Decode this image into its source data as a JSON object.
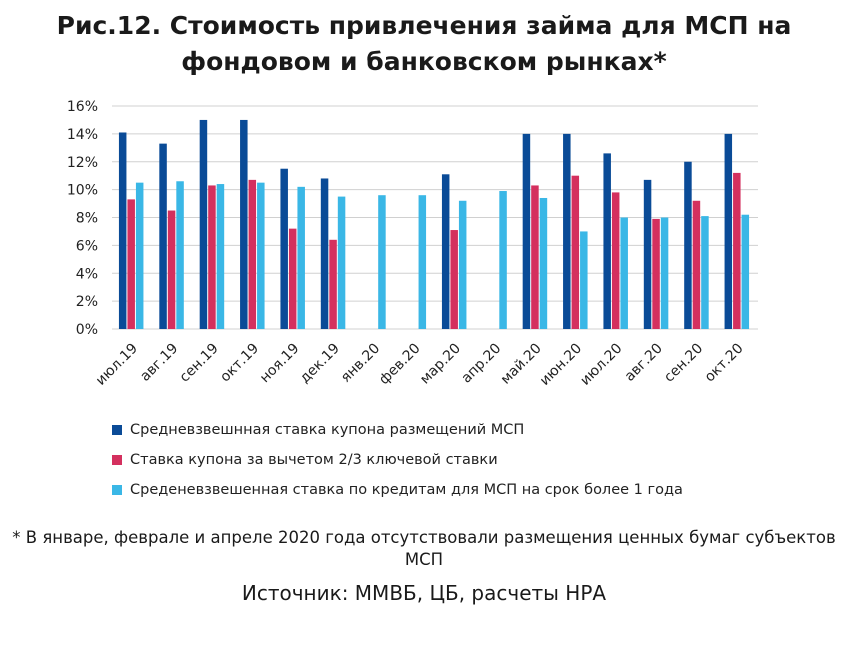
{
  "title": "Рис.12. Стоимость привлечения займа для МСП на фондовом и банковском рынках*",
  "footnote": "* В январе, феврале и апреле 2020 года отсутствовали размещения ценных бумаг субъектов МСП",
  "source": "Источник: ММВБ, ЦБ, расчеты НРА",
  "colors": {
    "series1": "#0a4b97",
    "series2": "#d4305e",
    "series3": "#3ab7e6",
    "grid": "#d0d0d0"
  },
  "chart_data": {
    "type": "bar",
    "title": "Рис.12. Стоимость привлечения займа для МСП на фондовом и банковском рынках*",
    "xlabel": "",
    "ylabel": "",
    "ylim": [
      0,
      16
    ],
    "y_ticks": [
      "0%",
      "2%",
      "4%",
      "6%",
      "8%",
      "10%",
      "12%",
      "14%",
      "16%"
    ],
    "grid": true,
    "legend_position": "bottom",
    "categories": [
      "июл.19",
      "авг.19",
      "сен.19",
      "окт.19",
      "ноя.19",
      "дек.19",
      "янв.20",
      "фев.20",
      "мар.20",
      "апр.20",
      "май.20",
      "июн.20",
      "июл.20",
      "авг.20",
      "сен.20",
      "окт.20"
    ],
    "series": [
      {
        "name": "Средневзвешнная ставка купона размещений МСП",
        "color": "#0a4b97",
        "values": [
          14.1,
          13.3,
          15.0,
          15.0,
          11.5,
          10.8,
          null,
          null,
          11.1,
          null,
          14.0,
          14.0,
          12.6,
          10.7,
          12.0,
          14.0
        ]
      },
      {
        "name": "Ставка купона за вычетом 2/3 ключевой ставки",
        "color": "#d4305e",
        "values": [
          9.3,
          8.5,
          10.3,
          10.7,
          7.2,
          6.4,
          null,
          null,
          7.1,
          null,
          10.3,
          11.0,
          9.8,
          7.9,
          9.2,
          11.2
        ]
      },
      {
        "name": "Среденевзвешенная ставка по кредитам для МСП на срок более 1 года",
        "color": "#3ab7e6",
        "values": [
          10.5,
          10.6,
          10.4,
          10.5,
          10.2,
          9.5,
          9.6,
          9.6,
          9.2,
          9.9,
          9.4,
          7.0,
          8.0,
          8.0,
          8.1,
          8.2
        ]
      }
    ]
  }
}
